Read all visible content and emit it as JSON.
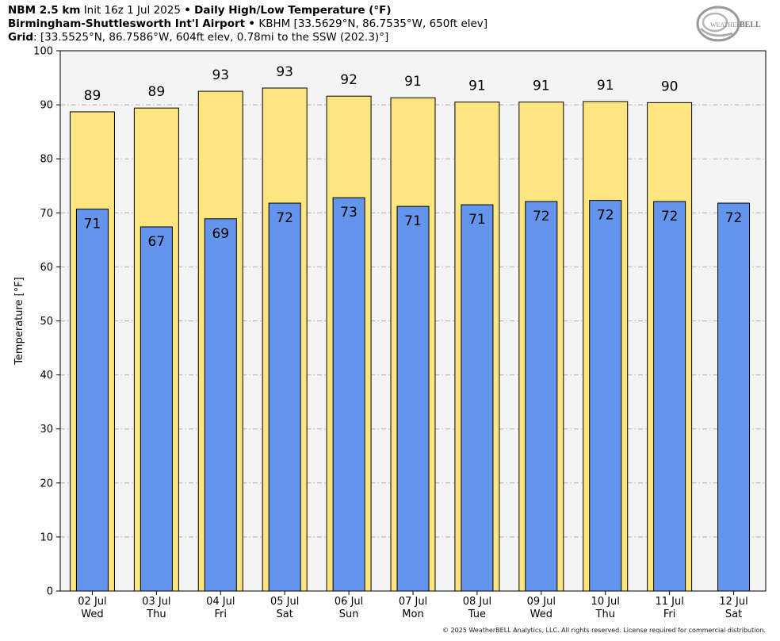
{
  "header": {
    "line1_model": "NBM 2.5 km",
    "line1_init": "Init 16z 1 Jul 2025",
    "line1_bullet": "•",
    "line1_product": "Daily High/Low Temperature (°F)",
    "line2_station": "Birmingham-Shuttlesworth Int'l Airport",
    "line2_bullet": "•",
    "line2_details": "KBHM [33.5629°N, 86.7535°W, 650ft elev]",
    "line3_grid_label": "Grid",
    "line3_details": ": [33.5525°N, 86.7586°W, 604ft elev, 0.78mi to the SSW (202.3)°]"
  },
  "logo": {
    "text_weather": "WEATHER",
    "text_bell": "BELL"
  },
  "footer": {
    "copyright": "© 2025 WeatherBELL Analytics, LLC. All rights reserved. License required for commercial distribution."
  },
  "colors": {
    "high_bar": "#ffe57f",
    "low_bar": "#6495ed",
    "plot_bg": "#f4f4f4",
    "grid": "#b0b0b0"
  },
  "chart_data": {
    "type": "bar",
    "ylabel": "Temperature [°F]",
    "ylim": [
      0,
      100
    ],
    "yticks": [
      0,
      10,
      20,
      30,
      40,
      50,
      60,
      70,
      80,
      90,
      100
    ],
    "grid": true,
    "categories": [
      {
        "date": "02 Jul",
        "day": "Wed"
      },
      {
        "date": "03 Jul",
        "day": "Thu"
      },
      {
        "date": "04 Jul",
        "day": "Fri"
      },
      {
        "date": "05 Jul",
        "day": "Sat"
      },
      {
        "date": "06 Jul",
        "day": "Sun"
      },
      {
        "date": "07 Jul",
        "day": "Mon"
      },
      {
        "date": "08 Jul",
        "day": "Tue"
      },
      {
        "date": "09 Jul",
        "day": "Wed"
      },
      {
        "date": "10 Jul",
        "day": "Thu"
      },
      {
        "date": "11 Jul",
        "day": "Fri"
      },
      {
        "date": "12 Jul",
        "day": "Sat"
      }
    ],
    "series": [
      {
        "key": "high",
        "values": [
          88.7,
          89.4,
          92.5,
          93.1,
          91.6,
          91.3,
          90.5,
          90.5,
          90.6,
          90.4,
          null
        ],
        "labels": [
          "89",
          "89",
          "93",
          "93",
          "92",
          "91",
          "91",
          "91",
          "91",
          "90",
          null
        ]
      },
      {
        "key": "low",
        "values": [
          70.7,
          67.4,
          68.9,
          71.8,
          72.8,
          71.2,
          71.5,
          72.1,
          72.3,
          72.1,
          71.8
        ],
        "labels": [
          "71",
          "67",
          "69",
          "72",
          "73",
          "71",
          "71",
          "72",
          "72",
          "72",
          "72"
        ]
      }
    ]
  }
}
